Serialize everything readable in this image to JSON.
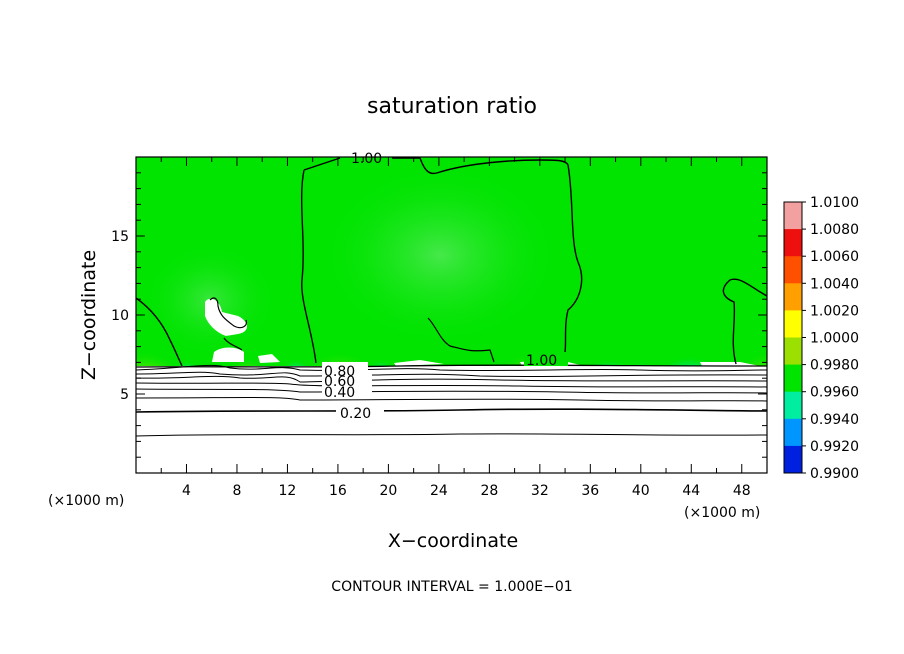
{
  "chart_data": {
    "type": "heatmap",
    "title": "saturation ratio",
    "xlabel": "X−coordinate",
    "ylabel": "Z−coordinate",
    "x_unit_left": "(×1000 m)",
    "x_unit_right": "(×1000 m)",
    "xlim": [
      0,
      50
    ],
    "ylim": [
      0,
      20
    ],
    "x_ticks": [
      "4",
      "8",
      "12",
      "16",
      "20",
      "24",
      "28",
      "32",
      "36",
      "40",
      "44",
      "48"
    ],
    "y_ticks": [
      "5",
      "10",
      "15"
    ],
    "colorbar": {
      "min": 0.99,
      "max": 1.01,
      "labels": [
        "1.0100",
        "1.0080",
        "1.0060",
        "1.0040",
        "1.0020",
        "1.0000",
        "0.9980",
        "0.9960",
        "0.9940",
        "0.9920",
        "0.9900"
      ],
      "colors": [
        "#f3a0a0",
        "#ee0f0f",
        "#ff5000",
        "#ffa000",
        "#ffff00",
        "#9be000",
        "#00e400",
        "#00eea0",
        "#0096ff",
        "#0020e0",
        "#6000c0"
      ]
    },
    "contour_labels": [
      "1.00",
      "1.00",
      "0.80",
      "0.60",
      "0.40",
      "0.20"
    ],
    "footer": "CONTOUR INTERVAL = 1.000E−01"
  }
}
